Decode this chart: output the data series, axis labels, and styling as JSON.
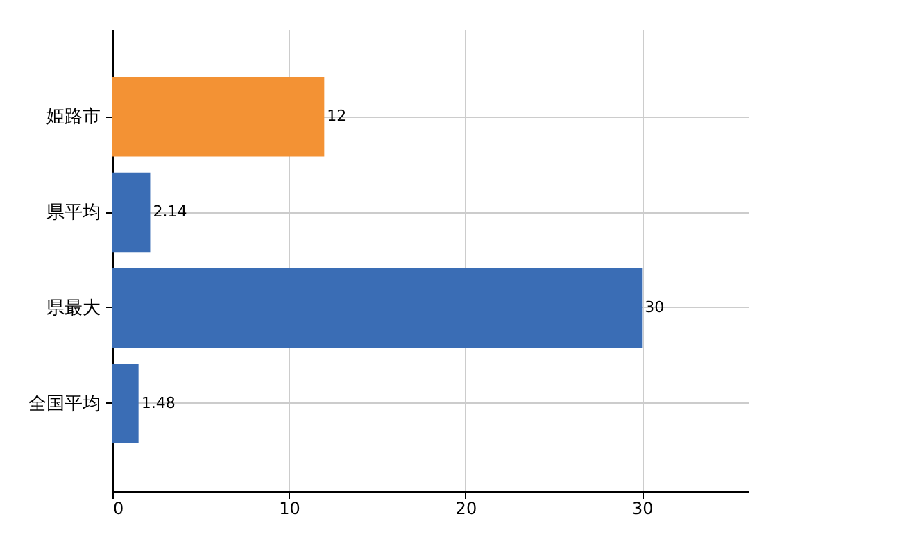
{
  "chart_data": {
    "type": "bar",
    "orientation": "horizontal",
    "categories": [
      "姫路市",
      "県平均",
      "県最大",
      "全国平均"
    ],
    "values": [
      12,
      2.14,
      30,
      1.48
    ],
    "colors": [
      "#f39234",
      "#3a6db5",
      "#3a6db5",
      "#3a6db5"
    ],
    "xlim": [
      0,
      36
    ],
    "xticks": [
      0,
      10,
      20,
      30
    ],
    "grid": true,
    "data_labels": true
  }
}
